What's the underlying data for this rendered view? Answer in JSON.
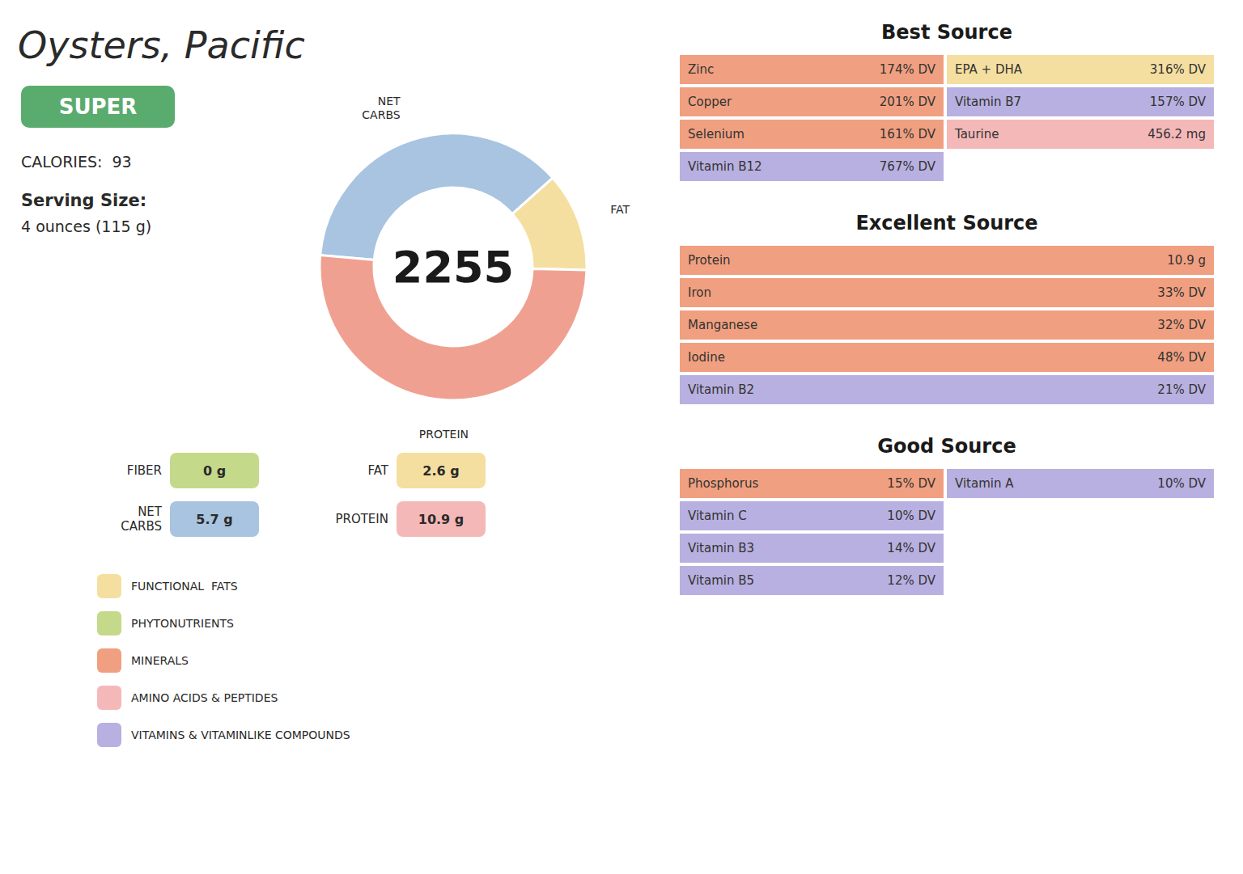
{
  "chart_data": {
    "type": "pie",
    "title": "Oysters, Pacific",
    "categories": [
      "NET\nCARBS",
      "FAT",
      "PROTEIN"
    ],
    "values": [
      37,
      12,
      51
    ],
    "colors": [
      "#a8c4e0",
      "#f5dfa0",
      "#f0a090"
    ],
    "center_label": "2255",
    "badge": {
      "label": "SUPER",
      "color": "#5aab6e"
    },
    "annotations": [
      "CALORIES:  93",
      "Serving Size:",
      "4 ounces (115 g)"
    ],
    "macros": [
      {
        "label": "FIBER",
        "value": "0 g",
        "color": "#c5d98a"
      },
      {
        "label": "FAT",
        "value": "2.6 g",
        "color": "#f5dfa0"
      },
      {
        "label": "NET\nCARBS",
        "value": "5.7 g",
        "color": "#a8c4e0"
      },
      {
        "label": "PROTEIN",
        "value": "10.9 g",
        "color": "#f5b8b8"
      }
    ],
    "legend_items": [
      {
        "label": "FUNCTIONAL  FATS",
        "color": "#f5dfa0"
      },
      {
        "label": "PHYTONUTRIENTS",
        "color": "#c5d98a"
      },
      {
        "label": "MINERALS",
        "color": "#f0a080"
      },
      {
        "label": "AMINO ACIDS & PEPTIDES",
        "color": "#f5b8b8"
      },
      {
        "label": "VITAMINS & VITAMINLIKE COMPOUNDS",
        "color": "#b8b0e0"
      }
    ],
    "sources": [
      {
        "title": "Best Source",
        "rows": [
          [
            {
              "name": "Zinc",
              "value": "174% DV",
              "color": "#f0a080"
            },
            {
              "name": "EPA + DHA",
              "value": "316% DV",
              "color": "#f5dfa0"
            }
          ],
          [
            {
              "name": "Copper",
              "value": "201% DV",
              "color": "#f0a080"
            },
            {
              "name": "Vitamin B7",
              "value": "157% DV",
              "color": "#b8b0e0"
            }
          ],
          [
            {
              "name": "Selenium",
              "value": "161% DV",
              "color": "#f0a080"
            },
            {
              "name": "Taurine",
              "value": "456.2 mg",
              "color": "#f5b8b8"
            }
          ],
          [
            {
              "name": "Vitamin B12",
              "value": "767% DV",
              "color": "#b8b0e0"
            }
          ]
        ]
      },
      {
        "title": "Excellent Source",
        "items": [
          {
            "name": "Protein",
            "value": "10.9 g",
            "color": "#f0a080"
          },
          {
            "name": "Iron",
            "value": "33% DV",
            "color": "#f0a080"
          },
          {
            "name": "Manganese",
            "value": "32% DV",
            "color": "#f0a080"
          },
          {
            "name": "Iodine",
            "value": "48% DV",
            "color": "#f0a080"
          },
          {
            "name": "Vitamin B2",
            "value": "21% DV",
            "color": "#b8b0e0"
          }
        ]
      },
      {
        "title": "Good Source",
        "rows": [
          [
            {
              "name": "Phosphorus",
              "value": "15% DV",
              "color": "#f0a080"
            },
            {
              "name": "Vitamin A",
              "value": "10% DV",
              "color": "#b8b0e0"
            }
          ],
          [
            {
              "name": "Vitamin C",
              "value": "10% DV",
              "color": "#b8b0e0"
            }
          ],
          [
            {
              "name": "Vitamin B3",
              "value": "14% DV",
              "color": "#b8b0e0"
            }
          ],
          [
            {
              "name": "Vitamin B5",
              "value": "12% DV",
              "color": "#b8b0e0"
            }
          ]
        ]
      }
    ]
  }
}
